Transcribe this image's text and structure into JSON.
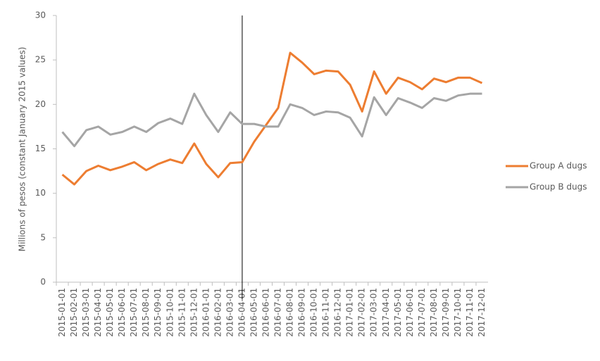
{
  "chart_data": {
    "type": "line",
    "y_label": "Millions of pesos (constant January 2015 values)",
    "categories": [
      "2015-01-01",
      "2015-02-01",
      "2015-03-01",
      "2015-04-01",
      "2015-05-01",
      "2015-06-01",
      "2015-07-01",
      "2015-08-01",
      "2015-09-01",
      "2015-10-01",
      "2015-11-01",
      "2015-12-01",
      "2016-01-01",
      "2016-02-01",
      "2016-03-01",
      "2016-04-01",
      "2016-05-01",
      "2016-06-01",
      "2016-07-01",
      "2016-08-01",
      "2016-09-01",
      "2016-10-01",
      "2016-11-01",
      "2016-12-01",
      "2017-01-01",
      "2017-02-01",
      "2017-03-01",
      "2017-04-01",
      "2017-05-01",
      "2017-06-01",
      "2017-07-01",
      "2017-08-01",
      "2017-09-01",
      "2017-10-01",
      "2017-11-01",
      "2017-12-01"
    ],
    "series": [
      {
        "name": "Group A dugs",
        "color": "#ed7d31",
        "values": [
          12.1,
          11.0,
          12.5,
          13.1,
          12.6,
          13.0,
          13.5,
          12.6,
          13.3,
          13.8,
          13.4,
          15.6,
          13.3,
          11.8,
          13.4,
          13.5,
          15.8,
          17.7,
          19.6,
          25.8,
          24.7,
          23.4,
          23.8,
          23.7,
          22.2,
          19.2,
          23.7,
          21.2,
          23.0,
          22.5,
          21.7,
          22.9,
          22.5,
          23.0,
          23.0,
          22.4
        ]
      },
      {
        "name": "Group B dugs",
        "color": "#a5a5a5",
        "values": [
          16.9,
          15.3,
          17.1,
          17.5,
          16.6,
          16.9,
          17.5,
          16.9,
          17.9,
          18.4,
          17.8,
          21.2,
          18.8,
          16.9,
          19.1,
          17.8,
          17.8,
          17.5,
          17.5,
          20.0,
          19.6,
          18.8,
          19.2,
          19.1,
          18.5,
          16.4,
          20.8,
          18.8,
          20.7,
          20.2,
          19.6,
          20.7,
          20.4,
          21.0,
          21.2,
          21.2
        ]
      }
    ],
    "ylim": [
      0,
      30
    ],
    "yticks": [
      0,
      5,
      10,
      15,
      20,
      25,
      30
    ],
    "grid": false,
    "legend": "right",
    "vertical_line_at": "2016-04-01"
  }
}
